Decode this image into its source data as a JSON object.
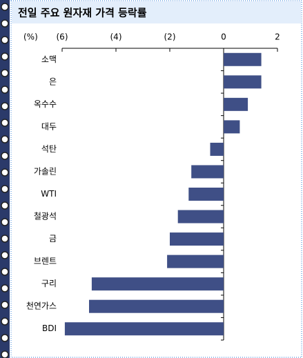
{
  "chart_data": {
    "type": "hbar",
    "title": "전일 주요 원자재 가격 등락률",
    "unit_label": "(%)",
    "categories": [
      "소맥",
      "은",
      "옥수수",
      "대두",
      "석탄",
      "가솔린",
      "WTI",
      "철광석",
      "금",
      "브렌트",
      "구리",
      "천연가스",
      "BDI"
    ],
    "values": [
      1.4,
      1.4,
      0.9,
      0.6,
      -0.5,
      -1.2,
      -1.3,
      -1.7,
      -2.0,
      -2.1,
      -4.9,
      -5.0,
      -5.9
    ],
    "color": "#3f4f86",
    "xlim": [
      -6,
      2
    ],
    "xticks": [
      {
        "value": -6,
        "label": "(6)"
      },
      {
        "value": -4,
        "label": "(4)"
      },
      {
        "value": -2,
        "label": "(2)"
      },
      0,
      2
    ]
  }
}
